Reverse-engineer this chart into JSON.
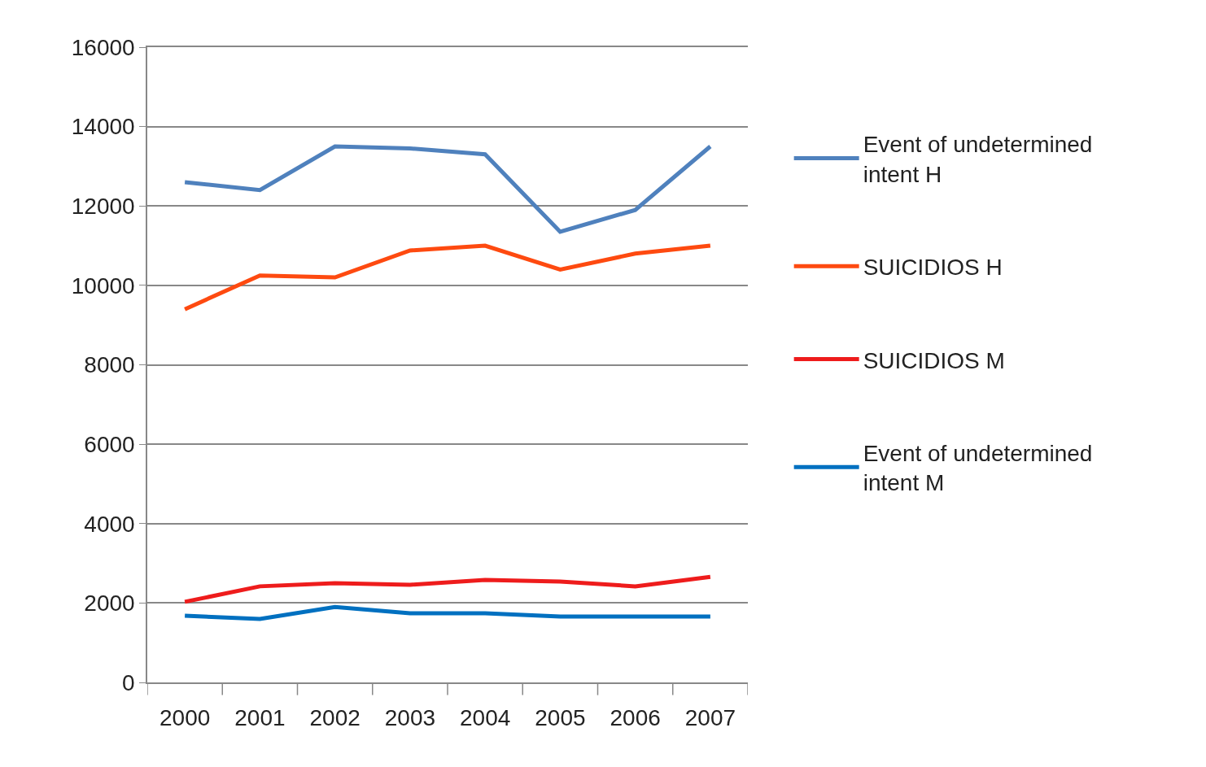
{
  "chart_data": {
    "type": "line",
    "categories": [
      "2000",
      "2001",
      "2002",
      "2003",
      "2004",
      "2005",
      "2006",
      "2007"
    ],
    "series": [
      {
        "name": "Event of undetermined intent H",
        "color": "#4f81bd",
        "values": [
          12600,
          12400,
          13500,
          13450,
          13300,
          11350,
          11900,
          13500
        ]
      },
      {
        "name": "SUICIDIOS H",
        "color": "#fe4a10",
        "values": [
          9400,
          10250,
          10200,
          10880,
          11000,
          10400,
          10800,
          11000
        ]
      },
      {
        "name": "SUICIDIOS M",
        "color": "#ee1c1c",
        "values": [
          2030,
          2420,
          2500,
          2460,
          2580,
          2540,
          2420,
          2660
        ]
      },
      {
        "name": "Event of undetermined intent M",
        "color": "#0070c0",
        "values": [
          1680,
          1600,
          1900,
          1740,
          1740,
          1660,
          1660,
          1660
        ]
      }
    ],
    "ylim": [
      0,
      16000
    ],
    "yticks": [
      0,
      2000,
      4000,
      6000,
      8000,
      10000,
      12000,
      14000,
      16000
    ],
    "grid": "y",
    "legend": "right",
    "marker": "none",
    "line_style": "solid"
  }
}
